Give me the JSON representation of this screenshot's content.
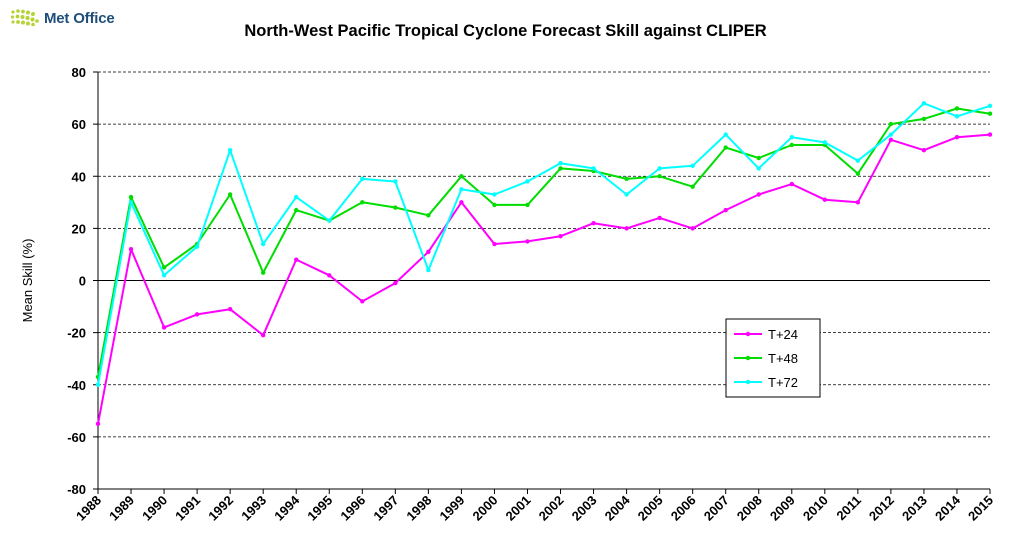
{
  "header": {
    "logo_text": "Met Office"
  },
  "chart_data": {
    "type": "line",
    "title": "North-West Pacific Tropical Cyclone Forecast Skill against CLIPER",
    "xlabel": "",
    "ylabel": "Mean Skill (%)",
    "ylim": [
      -80,
      80
    ],
    "yticks": [
      -80,
      -60,
      -40,
      -20,
      0,
      20,
      40,
      60,
      80
    ],
    "grid": "horizontal dashed",
    "legend_position": "right",
    "categories": [
      "1988",
      "1989",
      "1990",
      "1991",
      "1992",
      "1993",
      "1994",
      "1995",
      "1996",
      "1997",
      "1998",
      "1999",
      "2000",
      "2001",
      "2002",
      "2003",
      "2004",
      "2005",
      "2006",
      "2007",
      "2008",
      "2009",
      "2010",
      "2011",
      "2012",
      "2013",
      "2014",
      "2015"
    ],
    "series": [
      {
        "name": "T+24",
        "color": "#ff00ff",
        "values": [
          -55,
          12,
          -18,
          -13,
          -11,
          -21,
          8,
          2,
          -8,
          -1,
          11,
          30,
          14,
          15,
          17,
          22,
          20,
          24,
          20,
          27,
          33,
          37,
          31,
          30,
          54,
          50,
          55,
          56
        ]
      },
      {
        "name": "T+48",
        "color": "#00dd00",
        "values": [
          -37,
          32,
          5,
          14,
          33,
          3,
          27,
          23,
          30,
          28,
          25,
          40,
          29,
          29,
          43,
          42,
          39,
          40,
          36,
          51,
          47,
          52,
          52,
          41,
          60,
          62,
          66,
          64
        ]
      },
      {
        "name": "T+72",
        "color": "#00ffff",
        "values": [
          -40,
          30,
          2,
          13,
          50,
          14,
          32,
          23,
          39,
          38,
          4,
          35,
          33,
          38,
          45,
          43,
          33,
          43,
          44,
          56,
          43,
          55,
          53,
          46,
          56,
          68,
          63,
          67
        ]
      }
    ]
  }
}
